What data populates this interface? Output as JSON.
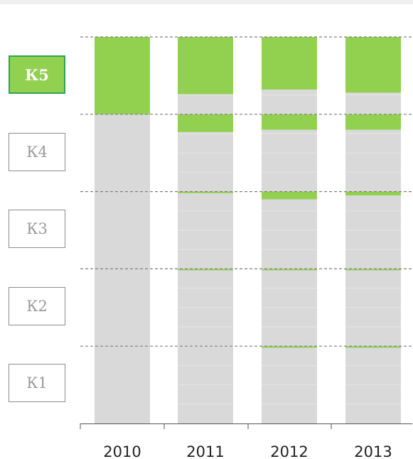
{
  "legend": [
    {
      "label": "К5",
      "active": true
    },
    {
      "label": "К4",
      "active": false
    },
    {
      "label": "К3",
      "active": false
    },
    {
      "label": "К2",
      "active": false
    },
    {
      "label": "К1",
      "active": false
    }
  ],
  "chart_data": {
    "type": "bar",
    "categories": [
      "2010",
      "2011",
      "2012",
      "2013"
    ],
    "bands": [
      "К1",
      "К2",
      "К3",
      "К4",
      "К5"
    ],
    "highlight_band": "К5",
    "highlight_color": "#92d050",
    "base_color": "#d9d9d9",
    "grid": true,
    "highlighted_share_per_band": {
      "2010": [
        0,
        0,
        0,
        0,
        1.0
      ],
      "2011": [
        0,
        0.01,
        0.02,
        0.23,
        0.74
      ],
      "2012": [
        0.02,
        0.01,
        0.1,
        0.2,
        0.68
      ],
      "2013": [
        0.02,
        0.01,
        0.05,
        0.2,
        0.72
      ]
    },
    "bar_segment_count": {
      "2010": 1,
      "2011": 20,
      "2012": 20,
      "2013": 20
    }
  }
}
